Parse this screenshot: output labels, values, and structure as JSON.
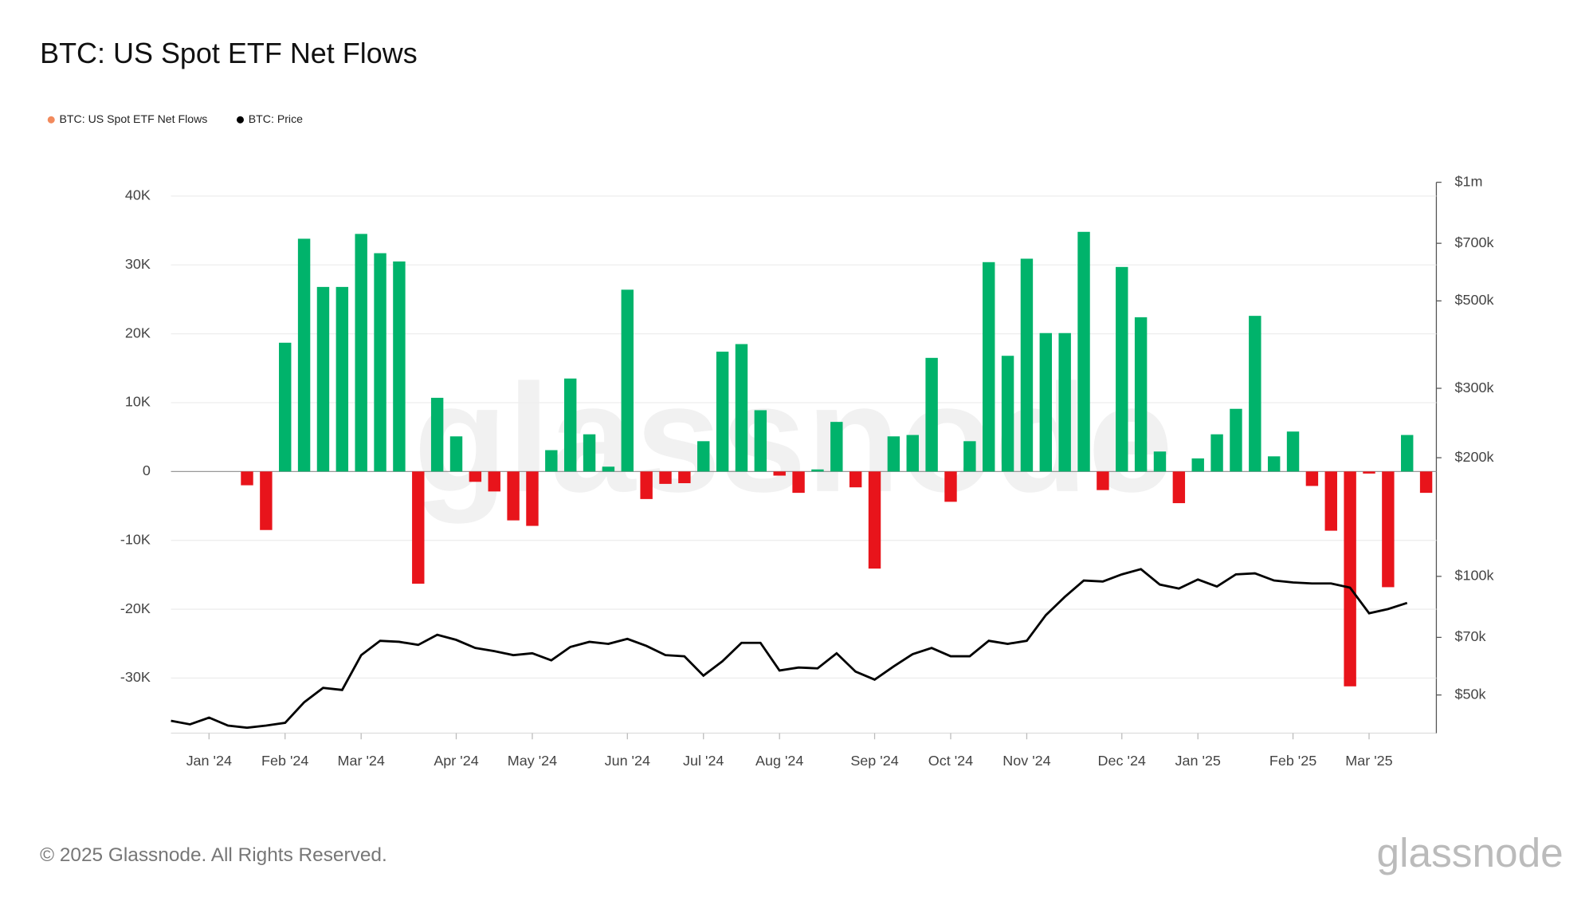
{
  "chart_data": {
    "type": "bar",
    "title": "BTC: US Spot ETF Net Flows",
    "watermark": "glassnode",
    "logo": "glassnode",
    "footer": "© 2025 Glassnode. All Rights Reserved.",
    "categories": [
      null,
      null,
      "Jan '24",
      null,
      null,
      null,
      "Feb '24",
      null,
      null,
      null,
      "Mar '24",
      null,
      null,
      null,
      null,
      "Apr '24",
      null,
      null,
      null,
      "May '24",
      null,
      null,
      null,
      null,
      "Jun '24",
      null,
      null,
      null,
      "Jul '24",
      null,
      null,
      null,
      "Aug '24",
      null,
      null,
      null,
      null,
      "Sep '24",
      null,
      null,
      null,
      "Oct '24",
      null,
      null,
      null,
      "Nov '24",
      null,
      null,
      null,
      null,
      "Dec '24",
      null,
      null,
      null,
      "Jan '25",
      null,
      null,
      null,
      null,
      "Feb '25",
      null,
      null,
      null,
      "Mar '25",
      null,
      null,
      null
    ],
    "positive_color": "#00b36b",
    "negative_color": "#e8141b",
    "series": [
      {
        "name": "BTC: US Spot ETF Net Flows",
        "color": "#f28a5c",
        "axis": "y",
        "values": [
          null,
          null,
          null,
          null,
          -2000,
          -8500,
          18700,
          33800,
          26800,
          26800,
          34500,
          31700,
          30500,
          -16300,
          10700,
          5100,
          -1500,
          -2900,
          -7100,
          -7900,
          3100,
          13500,
          5400,
          700,
          26400,
          -4000,
          -1800,
          -1700,
          4400,
          17400,
          18500,
          8900,
          -600,
          -3100,
          300,
          7200,
          -2300,
          -14100,
          5100,
          5300,
          16500,
          -4400,
          4400,
          30400,
          16800,
          30900,
          20100,
          20100,
          34800,
          -2700,
          29700,
          22400,
          2900,
          -4600,
          1900,
          5400,
          9100,
          22600,
          2200,
          5800,
          -2100,
          -8600,
          -31200,
          -300,
          -16800,
          5300,
          -3100
        ]
      },
      {
        "name": "BTC: Price",
        "color": "#000000",
        "axis": "y2",
        "values": [
          43000,
          42100,
          43800,
          41800,
          41300,
          41800,
          42500,
          47900,
          52100,
          51500,
          63100,
          68600,
          68200,
          67000,
          71100,
          69000,
          65800,
          64600,
          63100,
          63800,
          61200,
          66200,
          68200,
          67400,
          69400,
          66600,
          63100,
          62700,
          56000,
          60900,
          67800,
          67800,
          57700,
          58700,
          58400,
          63800,
          57300,
          54700,
          59100,
          63500,
          65800,
          62700,
          62700,
          68600,
          67400,
          68600,
          79700,
          88700,
          97600,
          97000,
          101200,
          104300,
          95300,
          93100,
          98200,
          94200,
          101200,
          101800,
          97600,
          96500,
          95900,
          95900,
          93600,
          80600,
          82600,
          85600,
          null
        ]
      }
    ],
    "ylim": [
      -38000,
      42000
    ],
    "yticks": [
      {
        "value": -30000,
        "label": "-30K"
      },
      {
        "value": -20000,
        "label": "-20K"
      },
      {
        "value": -10000,
        "label": "-10K"
      },
      0,
      {
        "value": 10000,
        "label": "10K"
      },
      {
        "value": 20000,
        "label": "20K"
      },
      {
        "value": 30000,
        "label": "30K"
      },
      {
        "value": 40000,
        "label": "40K"
      }
    ],
    "y2lim": [
      40000,
      1000000
    ],
    "y2_log": true,
    "y2ticks": [
      {
        "value": 50000,
        "label": "$50k"
      },
      {
        "value": 70000,
        "label": "$70k"
      },
      {
        "value": 100000,
        "label": "$100k"
      },
      {
        "value": 200000,
        "label": "$200k"
      },
      {
        "value": 300000,
        "label": "$300k"
      },
      {
        "value": 500000,
        "label": "$500k"
      },
      {
        "value": 700000,
        "label": "$700k"
      },
      {
        "value": 1000000,
        "label": "$1m"
      }
    ],
    "grid": true,
    "legend": "top-left"
  }
}
